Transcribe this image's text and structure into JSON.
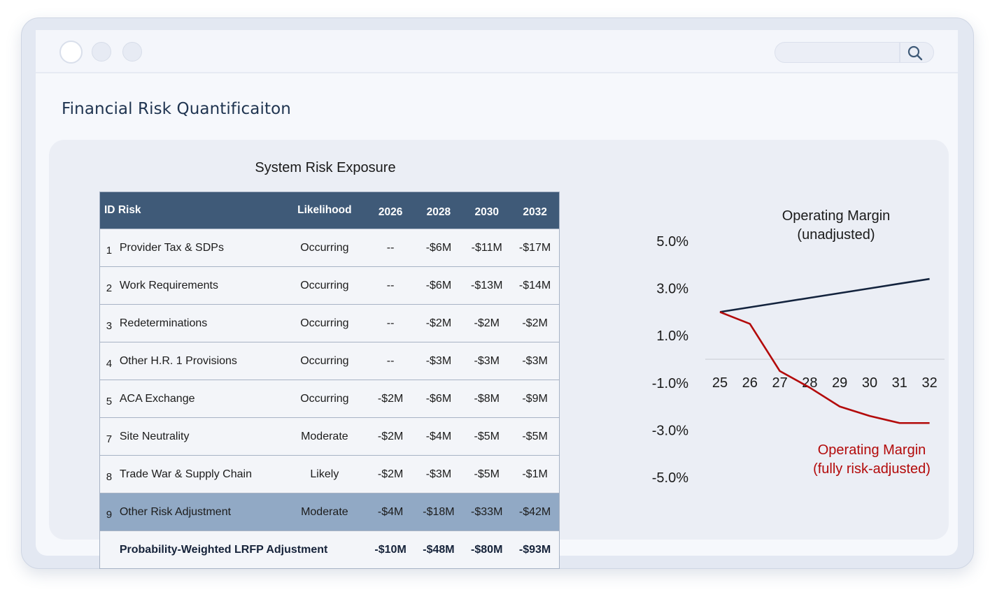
{
  "window": {
    "page_title": "Financial Risk Quantificaiton"
  },
  "table": {
    "title": "System Risk Exposure",
    "headers": [
      "ID",
      "Risk",
      "Likelihood",
      "2026",
      "2028",
      "2030",
      "2032"
    ],
    "rows": [
      {
        "id": "1",
        "risk": "Provider Tax & SDPs",
        "likelihood": "Occurring",
        "y2026": "--",
        "y2028": "-$6M",
        "y2030": "-$11M",
        "y2032": "-$17M"
      },
      {
        "id": "2",
        "risk": "Work Requirements",
        "likelihood": "Occurring",
        "y2026": "--",
        "y2028": "-$6M",
        "y2030": "-$13M",
        "y2032": "-$14M"
      },
      {
        "id": "3",
        "risk": "Redeterminations",
        "likelihood": "Occurring",
        "y2026": "--",
        "y2028": "-$2M",
        "y2030": "-$2M",
        "y2032": "-$2M"
      },
      {
        "id": "4",
        "risk": "Other H.R. 1 Provisions",
        "likelihood": "Occurring",
        "y2026": "--",
        "y2028": "-$3M",
        "y2030": "-$3M",
        "y2032": "-$3M"
      },
      {
        "id": "5",
        "risk": "ACA Exchange",
        "likelihood": "Occurring",
        "y2026": "-$2M",
        "y2028": "-$6M",
        "y2030": "-$8M",
        "y2032": "-$9M"
      },
      {
        "id": "7",
        "risk": "Site Neutrality",
        "likelihood": "Moderate",
        "y2026": "-$2M",
        "y2028": "-$4M",
        "y2030": "-$5M",
        "y2032": "-$5M"
      },
      {
        "id": "8",
        "risk": "Trade War & Supply Chain",
        "likelihood": "Likely",
        "y2026": "-$2M",
        "y2028": "-$3M",
        "y2030": "-$5M",
        "y2032": "-$1M"
      },
      {
        "id": "9",
        "risk": "Other Risk Adjustment",
        "likelihood": "Moderate",
        "y2026": "-$4M",
        "y2028": "-$18M",
        "y2030": "-$33M",
        "y2032": "-$42M"
      }
    ],
    "total": {
      "label": "Probability-Weighted LRFP Adjustment",
      "y2026": "-$10M",
      "y2028": "-$48M",
      "y2030": "-$80M",
      "y2032": "-$93M"
    }
  },
  "chart_data": {
    "type": "line",
    "title": "",
    "x": [
      "25",
      "26",
      "27",
      "28",
      "29",
      "30",
      "31",
      "32"
    ],
    "y_tick_labels": [
      "5.0%",
      "3.0%",
      "1.0%",
      "-1.0%",
      "-3.0%",
      "-5.0%"
    ],
    "ylim": [
      -5.0,
      5.0
    ],
    "series": [
      {
        "name": "Operating Margin (unadjusted)",
        "label_lines": [
          "Operating Margin",
          "(unadjusted)"
        ],
        "color": "#13233d",
        "values": [
          2.0,
          2.2,
          2.4,
          2.6,
          2.8,
          3.0,
          3.2,
          3.4
        ]
      },
      {
        "name": "Operating Margin (fully risk-adjusted)",
        "label_lines": [
          "Operating Margin",
          "(fully risk-adjusted)"
        ],
        "color": "#b30a0a",
        "values": [
          2.0,
          1.5,
          -0.5,
          -1.2,
          -2.0,
          -2.4,
          -2.7,
          -2.7
        ]
      }
    ]
  }
}
